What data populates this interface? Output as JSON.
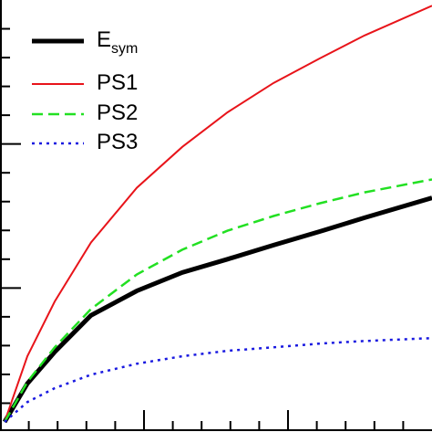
{
  "chart_data": {
    "type": "line",
    "x": [
      0.16,
      0.95,
      1.9,
      3.16,
      4.75,
      6.33,
      7.9,
      9.5,
      11.1,
      12.66,
      15
    ],
    "series": [
      {
        "name": "E",
        "name_subscript": "sym",
        "color": "#000000",
        "width": 5,
        "dash": "none",
        "values": [
          0.35,
          1.68,
          2.78,
          4.05,
          4.9,
          5.54,
          6.0,
          6.49,
          6.96,
          7.44,
          8.13
        ]
      },
      {
        "name": "PS1",
        "color": "#e8141a",
        "width": 2,
        "dash": "none",
        "values": [
          0.35,
          2.63,
          4.53,
          6.58,
          8.48,
          9.9,
          11.1,
          12.12,
          12.97,
          13.77,
          14.8
        ]
      },
      {
        "name": "PS2",
        "color": "#22e022",
        "width": 2.5,
        "dash": "12 6",
        "values": [
          0.35,
          1.74,
          2.94,
          4.27,
          5.47,
          6.33,
          6.99,
          7.5,
          7.94,
          8.32,
          8.77
        ]
      },
      {
        "name": "PS3",
        "color": "#1a1ae0",
        "width": 2.5,
        "dash": "3 5",
        "values": [
          0.35,
          1.04,
          1.52,
          1.99,
          2.37,
          2.63,
          2.82,
          2.94,
          3.07,
          3.16,
          3.26
        ]
      }
    ],
    "xlim": [
      0,
      15
    ],
    "ylim": [
      0,
      15
    ],
    "xticks": [
      1,
      2,
      3,
      4,
      5,
      6,
      7,
      8,
      9,
      10,
      11,
      12,
      13,
      14
    ],
    "yticks": [
      1,
      2,
      3,
      4,
      5,
      6,
      7,
      8,
      9,
      10,
      11,
      12,
      13,
      14
    ]
  }
}
